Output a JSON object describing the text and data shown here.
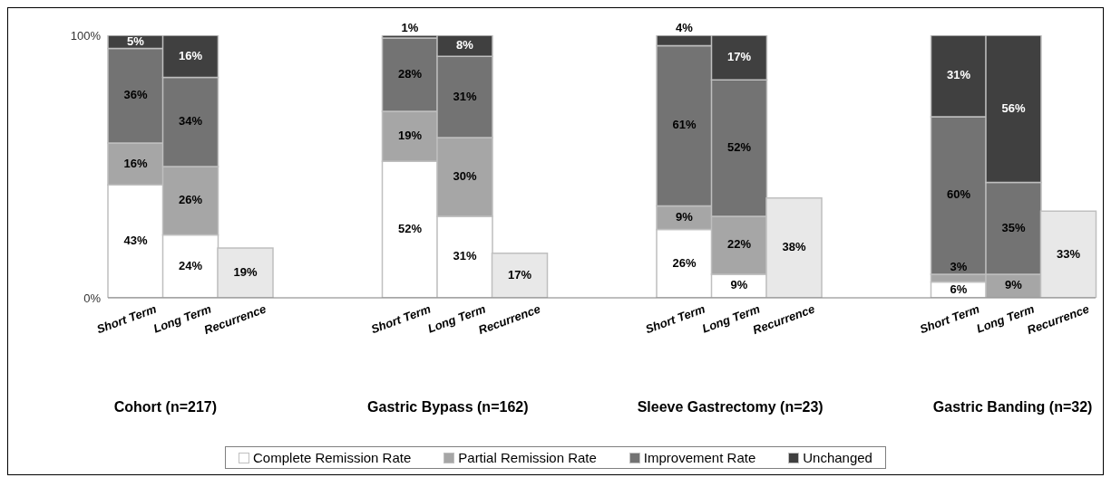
{
  "chart_data": {
    "type": "bar",
    "stacked": true,
    "categories": [
      "Short Term",
      "Long Term",
      "Recurrence",
      null,
      null,
      "Short Term",
      "Long Term",
      "Recurrence",
      null,
      null,
      "Short Term",
      "Long Term",
      "Recurrence",
      null,
      null,
      "Short Term",
      "Long Term",
      "Recurrence"
    ],
    "series": [
      {
        "name": "Complete Remission Rate",
        "color": "#ffffff",
        "values": [
          43,
          24,
          null,
          null,
          null,
          52,
          31,
          null,
          null,
          null,
          26,
          9,
          null,
          null,
          null,
          6,
          0,
          null
        ],
        "value_labels": [
          "43%",
          "24%",
          null,
          null,
          null,
          "52%",
          "31%",
          null,
          null,
          null,
          "26%",
          "9%",
          null,
          null,
          null,
          "6%",
          null,
          null
        ]
      },
      {
        "name": "Partial Remission Rate",
        "color": "#a6a6a6",
        "values": [
          16,
          26,
          null,
          null,
          null,
          19,
          30,
          null,
          null,
          null,
          9,
          22,
          null,
          null,
          null,
          3,
          9,
          null
        ],
        "value_labels": [
          "16%",
          "26%",
          null,
          null,
          null,
          "19%",
          "30%",
          null,
          null,
          null,
          "9%",
          "22%",
          null,
          null,
          null,
          "3%",
          "9%",
          null
        ]
      },
      {
        "name": "Improvement Rate",
        "color": "#737373",
        "values": [
          36,
          34,
          null,
          null,
          null,
          28,
          31,
          null,
          null,
          null,
          61,
          52,
          null,
          null,
          null,
          60,
          35,
          null
        ],
        "value_labels": [
          "36%",
          "34%",
          null,
          null,
          null,
          "28%",
          "31%",
          null,
          null,
          null,
          "61%",
          "52%",
          null,
          null,
          null,
          "60%",
          "35%",
          null
        ]
      },
      {
        "name": "Unchanged",
        "color": "#404040",
        "values": [
          5,
          16,
          null,
          null,
          null,
          1,
          8,
          null,
          null,
          null,
          4,
          17,
          null,
          null,
          null,
          31,
          56,
          null
        ],
        "value_labels": [
          "5%",
          "16%",
          null,
          null,
          null,
          "1%",
          "8%",
          null,
          null,
          null,
          "4%",
          "17%",
          null,
          null,
          null,
          "31%",
          "56%",
          null
        ]
      },
      {
        "color": "#e8e8e8",
        "values": [
          null,
          null,
          19,
          null,
          null,
          null,
          null,
          17,
          null,
          null,
          null,
          null,
          38,
          null,
          null,
          null,
          null,
          33
        ],
        "value_labels": [
          null,
          null,
          "19%",
          null,
          null,
          null,
          null,
          "17%",
          null,
          null,
          null,
          null,
          "38%",
          null,
          null,
          null,
          null,
          "33%"
        ]
      }
    ],
    "ylim": [
      0,
      100
    ],
    "yticks": [
      {
        "value": 0,
        "label": "0%"
      },
      {
        "value": 100,
        "label": "100%"
      }
    ],
    "annotations": [
      "Cohort (n=217)",
      "Gastric Bypass (n=162)",
      "Sleeve Gastrectomy (n=23)",
      "Gastric Banding (n=32)"
    ],
    "legend": "bottom"
  }
}
